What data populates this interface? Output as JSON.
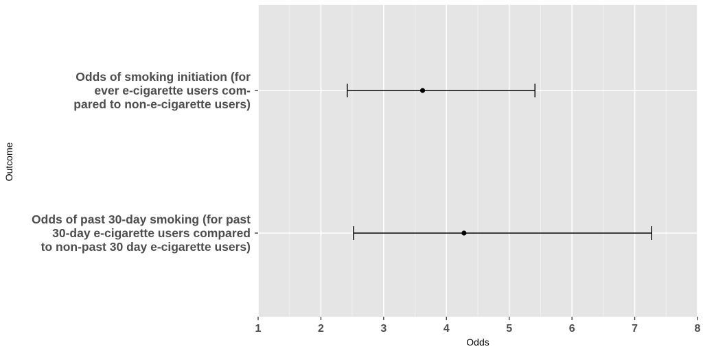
{
  "chart_data": {
    "type": "errorbar",
    "orientation": "horizontal",
    "xlabel": "Odds",
    "ylabel": "Outcome",
    "xlim": [
      1,
      8
    ],
    "x_ticks": [
      1,
      2,
      3,
      4,
      5,
      6,
      7,
      8
    ],
    "x_tick_labels": [
      "1",
      "2",
      "3",
      "4",
      "5",
      "6",
      "7",
      "8"
    ],
    "grid": true,
    "categories": [
      {
        "label_lines": [
          "Odds of smoking initiation (for",
          "ever e-cigarette users com-",
          "pared to non-e-cigarette users)"
        ],
        "estimate": 3.62,
        "lower": 2.42,
        "upper": 5.41
      },
      {
        "label_lines": [
          "Odds of past 30-day smoking (for past",
          "30-day e-cigarette users compared",
          "to non-past 30 day e-cigarette users)"
        ],
        "estimate": 4.28,
        "lower": 2.52,
        "upper": 7.27
      }
    ],
    "colors": {
      "panel_background": "#e5e5e5",
      "grid_line": "#ffffff",
      "mark": "#000000",
      "tick_label": "#4d4d4d"
    }
  }
}
